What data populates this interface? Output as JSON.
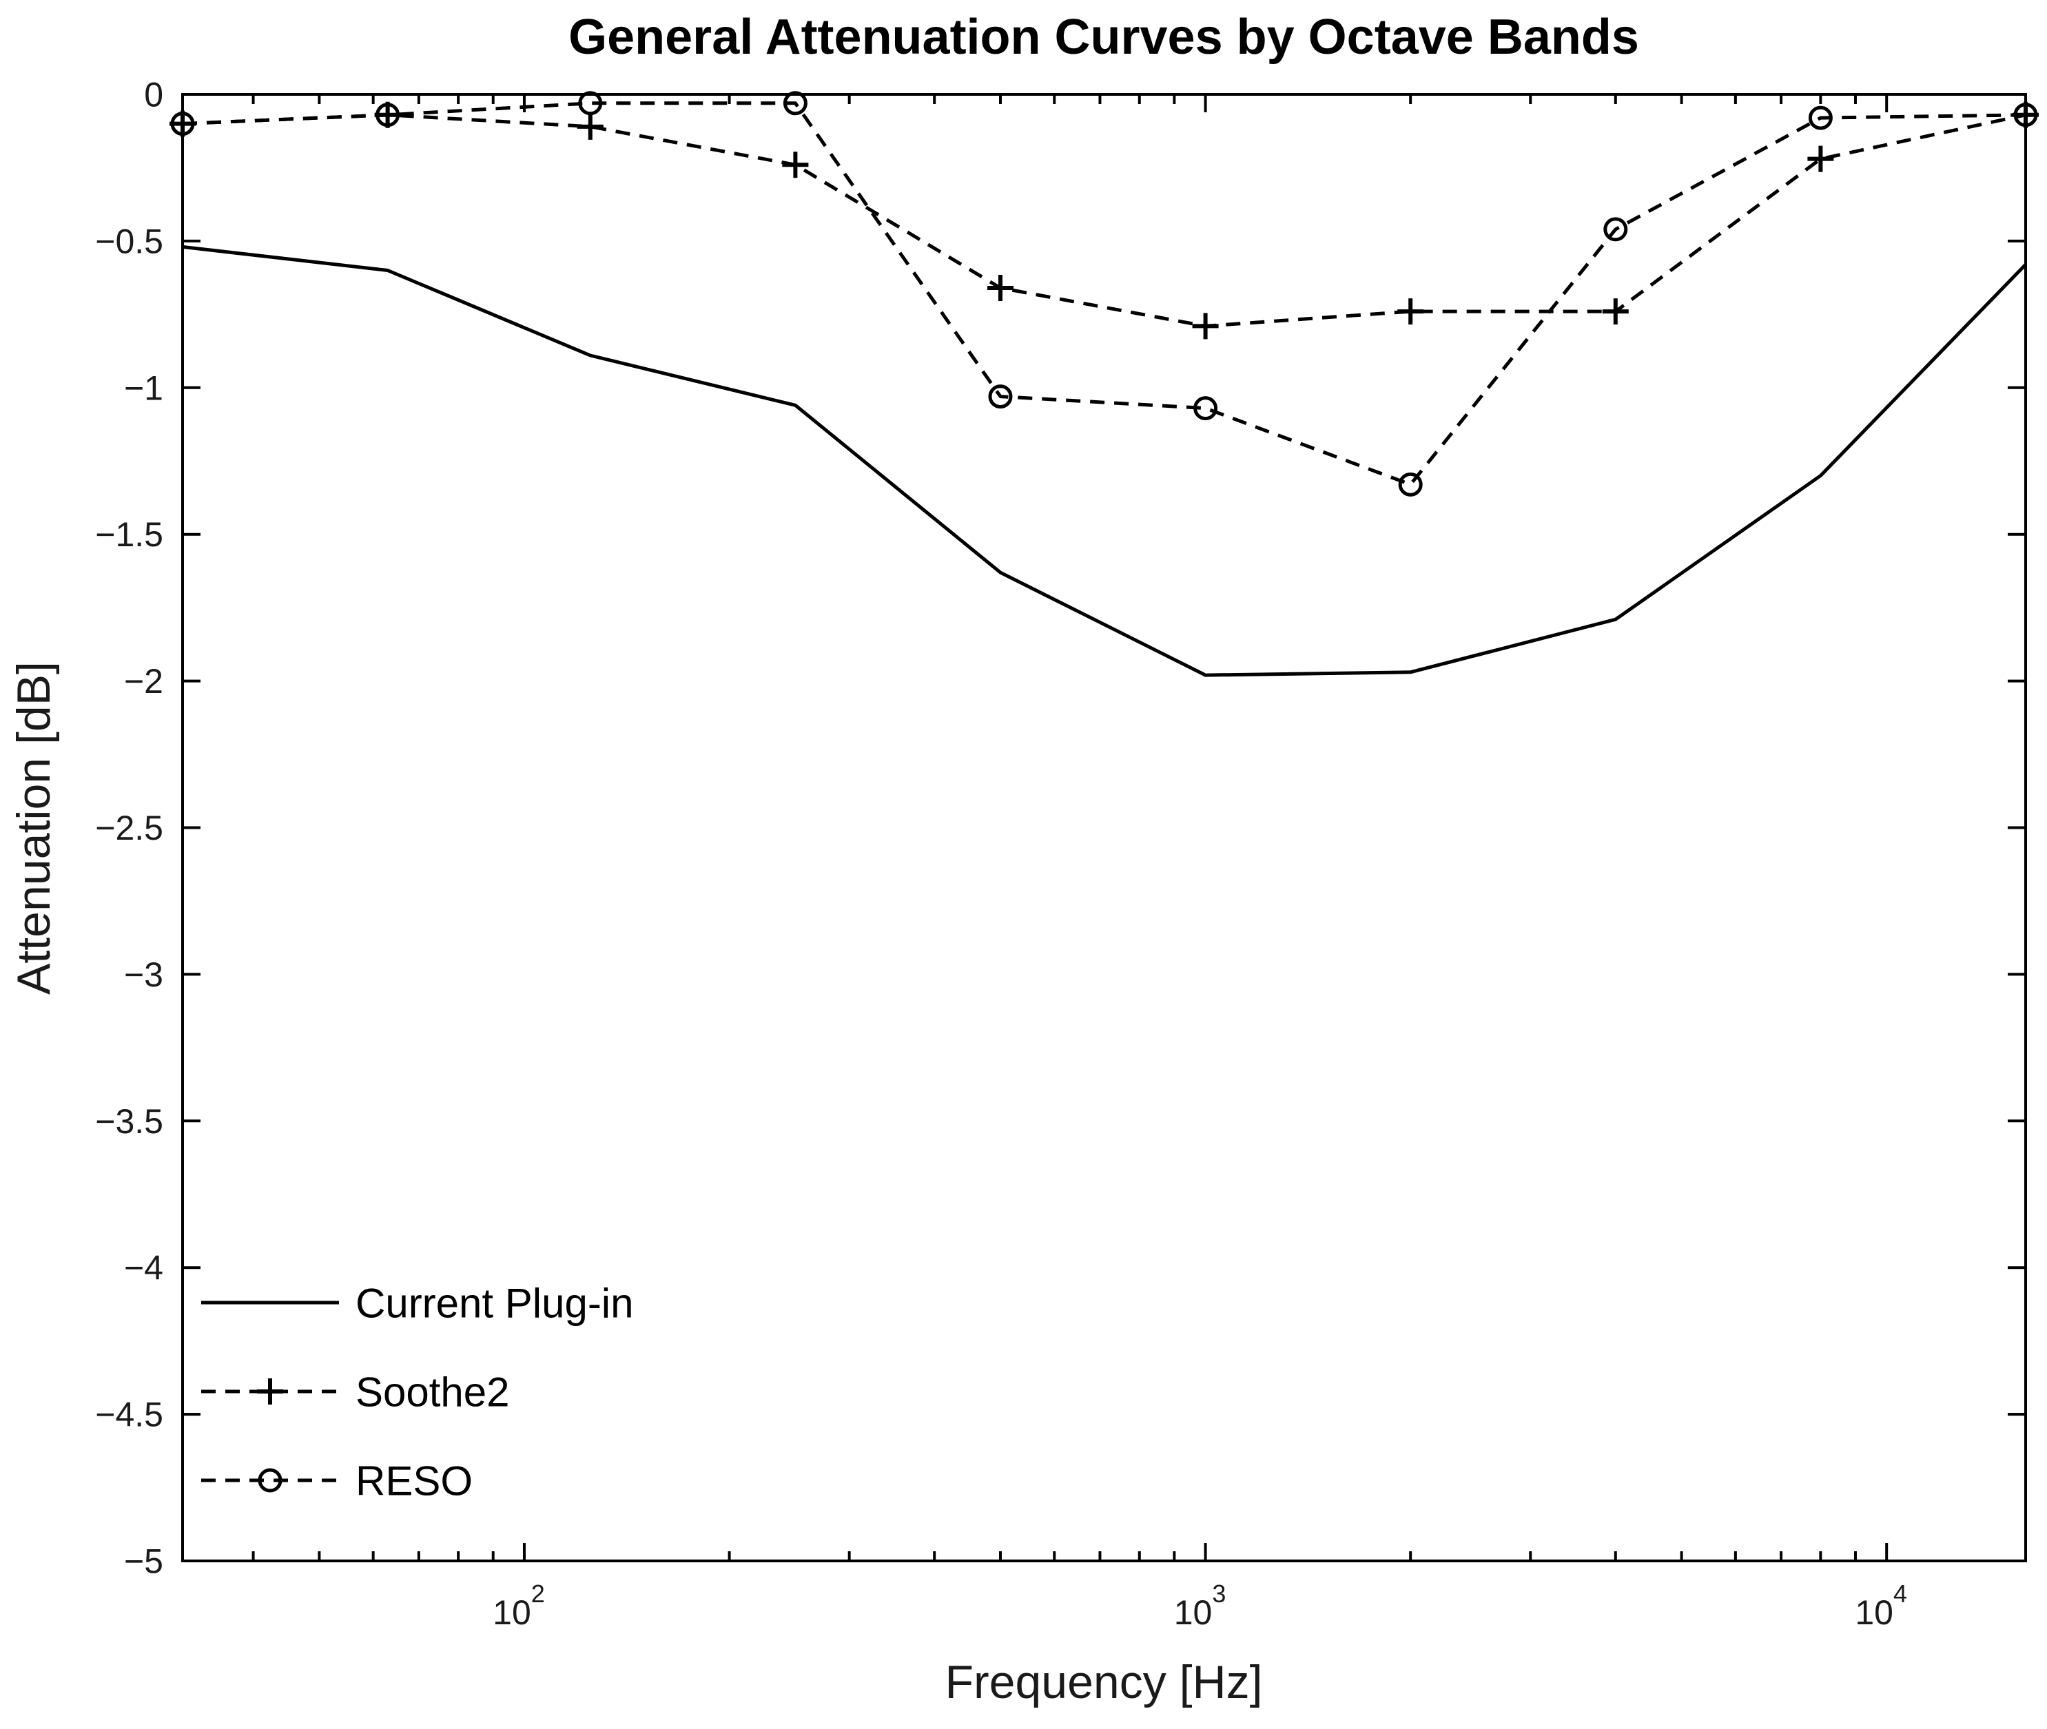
{
  "chart_data": {
    "type": "line",
    "title": "General Attenuation Curves by Octave Bands",
    "xlabel": "Frequency [Hz]",
    "ylabel": "Attenuation [dB]",
    "x_scale": "log",
    "xlim": [
      31.5,
      16000
    ],
    "ylim": [
      -5,
      0
    ],
    "grid": false,
    "legend_position": "bottom-left",
    "colors": {
      "foreground": "#000000",
      "background": "#ffffff"
    },
    "x": [
      31.5,
      63,
      125,
      250,
      500,
      1000,
      2000,
      4000,
      8000,
      16000
    ],
    "x_major_ticks": [
      {
        "value": 100,
        "base": "10",
        "exp": "2"
      },
      {
        "value": 1000,
        "base": "10",
        "exp": "3"
      },
      {
        "value": 10000,
        "base": "10",
        "exp": "4"
      }
    ],
    "y_ticks": [
      {
        "value": 0,
        "label": "0"
      },
      {
        "value": -0.5,
        "label": "−0.5"
      },
      {
        "value": -1,
        "label": "−1"
      },
      {
        "value": -1.5,
        "label": "−1.5"
      },
      {
        "value": -2,
        "label": "−2"
      },
      {
        "value": -2.5,
        "label": "−2.5"
      },
      {
        "value": -3,
        "label": "−3"
      },
      {
        "value": -3.5,
        "label": "−3.5"
      },
      {
        "value": -4,
        "label": "−4"
      },
      {
        "value": -4.5,
        "label": "−4.5"
      },
      {
        "value": -5,
        "label": "−5"
      }
    ],
    "series": [
      {
        "name": "Current Plug-in",
        "line": "solid",
        "marker": "none",
        "color": "#000000",
        "values": [
          -0.52,
          -0.6,
          -0.89,
          -1.06,
          -1.63,
          -1.98,
          -1.97,
          -1.79,
          -1.3,
          -0.58
        ]
      },
      {
        "name": "Soothe2",
        "line": "dashed",
        "marker": "plus",
        "color": "#000000",
        "values": [
          -0.1,
          -0.07,
          -0.11,
          -0.24,
          -0.66,
          -0.79,
          -0.74,
          -0.74,
          -0.22,
          -0.07
        ]
      },
      {
        "name": "RESO",
        "line": "dashed",
        "marker": "circle",
        "color": "#000000",
        "values": [
          -0.1,
          -0.07,
          -0.03,
          -0.03,
          -1.03,
          -1.07,
          -1.33,
          -0.46,
          -0.08,
          -0.07
        ]
      }
    ]
  }
}
